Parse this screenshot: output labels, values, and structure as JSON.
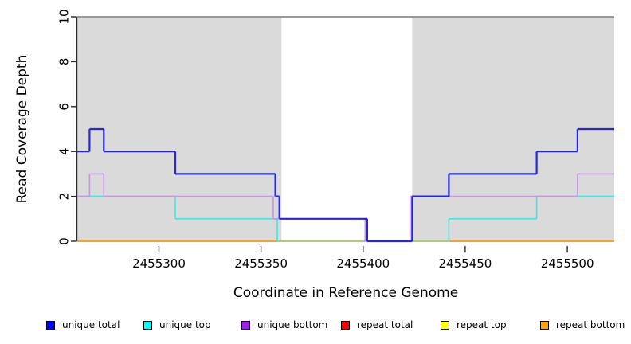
{
  "figure": {
    "xlabel": "Coordinate in Reference Genome",
    "ylabel": "Read Coverage Depth"
  },
  "chart_data": {
    "type": "line",
    "subtype": "step-coverage",
    "title": "",
    "xlabel": "Coordinate in Reference Genome",
    "ylabel": "Read Coverage Depth",
    "xlim": [
      2455260,
      2455523
    ],
    "ylim": [
      0,
      10
    ],
    "x_ticks": [
      2455300,
      2455350,
      2455400,
      2455450,
      2455500
    ],
    "y_ticks": [
      0,
      2,
      4,
      6,
      8,
      10
    ],
    "grid": false,
    "legend_position": "bottom",
    "panel_background": "#ffffff",
    "shaded_region_color": "#DADADA",
    "top_border_color": "#999999",
    "shaded_regions": [
      {
        "x0": 2455260,
        "x1": 2455360
      },
      {
        "x0": 2455424,
        "x1": 2455523
      }
    ],
    "series": [
      {
        "name": "repeat total",
        "color": "#C00000",
        "width": 1.4,
        "steps": [
          [
            2455260,
            0
          ]
        ]
      },
      {
        "name": "repeat top",
        "color": "#FFFF00",
        "width": 1.4,
        "steps": [
          [
            2455260,
            0
          ]
        ]
      },
      {
        "name": "repeat bottom",
        "color": "#FF9D20",
        "width": 1.8,
        "steps": [
          [
            2455260,
            0
          ]
        ]
      },
      {
        "name": "unique top",
        "color": "#3FE6E6",
        "width": 1.6,
        "zero_overlap_color": "#92DA92",
        "steps": [
          [
            2455260,
            2
          ],
          [
            2455308,
            1
          ],
          [
            2455358,
            0
          ],
          [
            2455442,
            1
          ],
          [
            2455485,
            2
          ]
        ]
      },
      {
        "name": "unique bottom",
        "color": "#C397DE",
        "width": 1.6,
        "steps": [
          [
            2455260,
            2
          ],
          [
            2455266,
            3
          ],
          [
            2455273,
            2
          ],
          [
            2455356,
            1
          ],
          [
            2455401,
            0
          ],
          [
            2455423,
            2
          ],
          [
            2455505,
            3
          ]
        ]
      },
      {
        "name": "unique total",
        "color": "#2626DF",
        "width": 2.2,
        "steps": [
          [
            2455260,
            4
          ],
          [
            2455266,
            5
          ],
          [
            2455273,
            4
          ],
          [
            2455308,
            3
          ],
          [
            2455357,
            2
          ],
          [
            2455359,
            1
          ],
          [
            2455402,
            0
          ],
          [
            2455424,
            2
          ],
          [
            2455442,
            3
          ],
          [
            2455485,
            4
          ],
          [
            2455505,
            5
          ]
        ]
      }
    ]
  },
  "legend": {
    "items": [
      {
        "label": "unique total",
        "color": "#0000FF"
      },
      {
        "label": "unique top",
        "color": "#00FFFF"
      },
      {
        "label": "unique bottom",
        "color": "#A020F0"
      },
      {
        "label": "repeat total",
        "color": "#FF0000"
      },
      {
        "label": "repeat top",
        "color": "#FFFF00"
      },
      {
        "label": "repeat bottom",
        "color": "#FFA500"
      }
    ]
  }
}
